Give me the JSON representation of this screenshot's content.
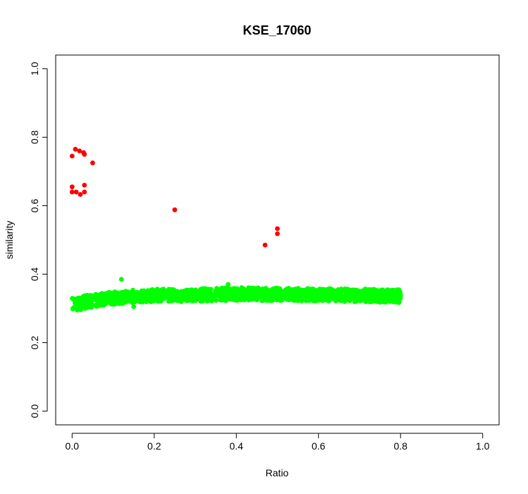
{
  "chart_data": {
    "type": "scatter",
    "title": "KSE_17060",
    "xlabel": "Ratio",
    "ylabel": "similarity",
    "xlim": [
      -0.04,
      1.04
    ],
    "ylim": [
      -0.04,
      1.04
    ],
    "xticks": [
      "0.0",
      "0.2",
      "0.4",
      "0.6",
      "0.8",
      "1.0"
    ],
    "yticks": [
      "0.0",
      "0.2",
      "0.4",
      "0.6",
      "0.8",
      "1.0"
    ],
    "grid": false,
    "legend": "none",
    "series": [
      {
        "color": "#ff0000",
        "points": [
          [
            0.0,
            0.745
          ],
          [
            0.008,
            0.765
          ],
          [
            0.018,
            0.76
          ],
          [
            0.028,
            0.755
          ],
          [
            0.03,
            0.75
          ],
          [
            0.05,
            0.725
          ],
          [
            0.0,
            0.655
          ],
          [
            0.0,
            0.64
          ],
          [
            0.01,
            0.64
          ],
          [
            0.02,
            0.633
          ],
          [
            0.03,
            0.64
          ],
          [
            0.03,
            0.66
          ],
          [
            0.25,
            0.588
          ],
          [
            0.47,
            0.485
          ],
          [
            0.5,
            0.533
          ],
          [
            0.5,
            0.518
          ]
        ]
      },
      {
        "color": "#00ff00",
        "description": "dense band of points from Ratio 0.00 to 0.80, similarity approx. 0.30-0.39",
        "band": {
          "x_range": [
            0.0,
            0.8
          ],
          "center_profile": [
            [
              0.0,
              0.313
            ],
            [
              0.05,
              0.322
            ],
            [
              0.1,
              0.33
            ],
            [
              0.15,
              0.335
            ],
            [
              0.2,
              0.338
            ],
            [
              0.3,
              0.339
            ],
            [
              0.4,
              0.342
            ],
            [
              0.5,
              0.341
            ],
            [
              0.6,
              0.34
            ],
            [
              0.7,
              0.338
            ],
            [
              0.8,
              0.336
            ]
          ],
          "spread": 0.018
        },
        "notable_points": [
          [
            0.12,
            0.385
          ],
          [
            0.15,
            0.305
          ],
          [
            0.38,
            0.37
          ]
        ]
      }
    ]
  }
}
